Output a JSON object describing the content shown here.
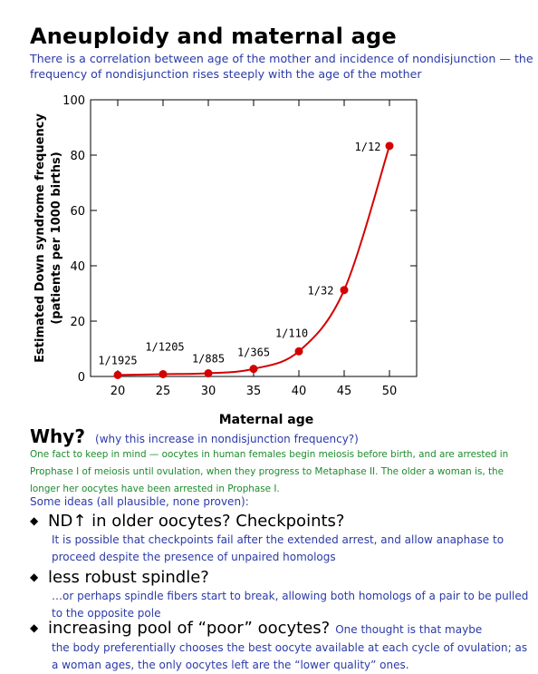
{
  "title": "Aneuploidy and maternal age",
  "subtitle": "There is a correlation between age of the mother and incidence of nondisjunction — the frequency of nondisjunction rises steeply with the age of the mother",
  "chart_data": {
    "type": "line",
    "xlabel": "Maternal age",
    "ylabel_line1": "Estimated Down syndrome frequency",
    "ylabel_line2": "(patients per 1000 births)",
    "xlim": [
      17,
      53
    ],
    "ylim": [
      0,
      100
    ],
    "x_ticks": [
      20,
      25,
      30,
      35,
      40,
      45,
      50
    ],
    "y_ticks": [
      0,
      20,
      40,
      60,
      80,
      100
    ],
    "grid": false,
    "line_color": "#d40000",
    "points": [
      {
        "x": 20,
        "y": 0.52,
        "label": "1/1925"
      },
      {
        "x": 25,
        "y": 0.83,
        "label": "1/1205"
      },
      {
        "x": 30,
        "y": 1.13,
        "label": "1/885"
      },
      {
        "x": 35,
        "y": 2.74,
        "label": "1/365"
      },
      {
        "x": 40,
        "y": 9.09,
        "label": "1/110"
      },
      {
        "x": 45,
        "y": 31.25,
        "label": "1/32"
      },
      {
        "x": 50,
        "y": 83.33,
        "label": "1/12"
      }
    ]
  },
  "why": {
    "heading": "Why?",
    "note": "(why this increase in nondisjunction frequency?)",
    "fact": "One fact to keep in mind — oocytes in human females begin meiosis before birth, and are arrested in Prophase I of meiosis until ovulation, when they progress to Metaphase II.  The older a woman is, the longer her oocytes have been arrested in Prophase I.",
    "ideas_intro": "Some ideas (all plausible, none proven):"
  },
  "ideas": [
    {
      "bullet": "◆",
      "heading": "ND↑ in older oocytes?  Checkpoints?",
      "body": "It is possible that checkpoints fail after the extended arrest, and allow anaphase to proceed despite the presence of unpaired homologs"
    },
    {
      "bullet": "◆",
      "heading": "less robust spindle?",
      "body": "…or perhaps spindle fibers start to break, allowing both homologs of a pair to be pulled to the opposite pole"
    },
    {
      "bullet": "◆",
      "heading": "increasing pool of “poor” oocytes?",
      "inline_note": "One thought is that maybe",
      "body": "the body preferentially chooses the best oocyte available at each cycle of ovulation; as a woman ages, the only oocytes left are the “lower quality” ones."
    }
  ]
}
